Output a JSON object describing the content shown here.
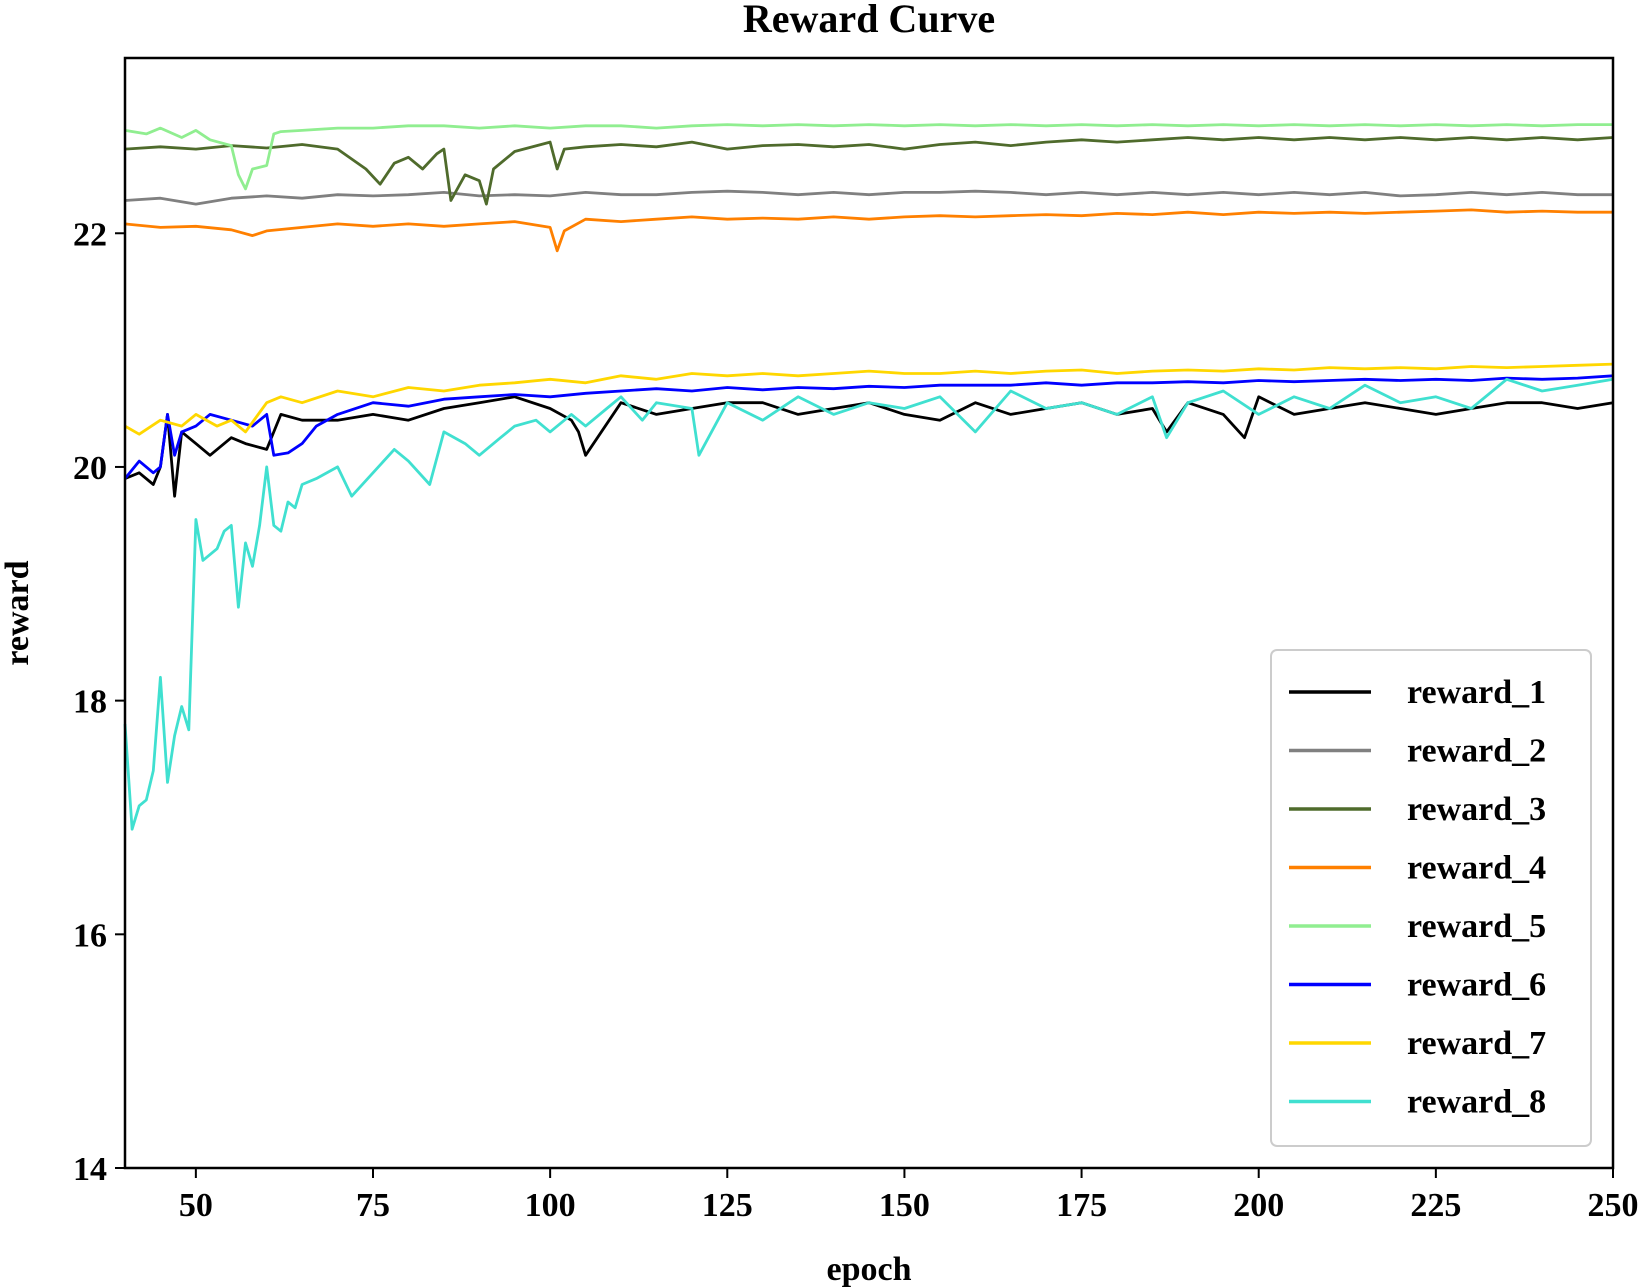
{
  "chart_data": {
    "type": "line",
    "title": "Reward Curve",
    "xlabel": "epoch",
    "ylabel": "reward",
    "xlim": [
      40,
      250
    ],
    "ylim": [
      14,
      23.5
    ],
    "xticks": [
      50,
      75,
      100,
      125,
      150,
      175,
      200,
      225,
      250
    ],
    "yticks": [
      14,
      16,
      18,
      20,
      22
    ],
    "legend_position": "bottom-right",
    "grid": false,
    "series": [
      {
        "name": "reward_1",
        "color": "#000000",
        "x": [
          40,
          42,
          44,
          45,
          46,
          47,
          48,
          50,
          52,
          55,
          57,
          60,
          62,
          65,
          70,
          75,
          80,
          85,
          90,
          95,
          100,
          103,
          104,
          105,
          110,
          115,
          120,
          125,
          130,
          135,
          140,
          145,
          150,
          155,
          160,
          165,
          170,
          175,
          180,
          185,
          187,
          190,
          195,
          198,
          200,
          205,
          210,
          215,
          220,
          225,
          230,
          235,
          240,
          245,
          250
        ],
        "values": [
          19.9,
          19.95,
          19.85,
          20.0,
          20.45,
          19.75,
          20.3,
          20.2,
          20.1,
          20.25,
          20.2,
          20.15,
          20.45,
          20.4,
          20.4,
          20.45,
          20.4,
          20.5,
          20.55,
          20.6,
          20.5,
          20.4,
          20.3,
          20.1,
          20.55,
          20.45,
          20.5,
          20.55,
          20.55,
          20.45,
          20.5,
          20.55,
          20.45,
          20.4,
          20.55,
          20.45,
          20.5,
          20.55,
          20.45,
          20.5,
          20.3,
          20.55,
          20.45,
          20.25,
          20.6,
          20.45,
          20.5,
          20.55,
          20.5,
          20.45,
          20.5,
          20.55,
          20.55,
          20.5,
          20.55
        ]
      },
      {
        "name": "reward_2",
        "color": "#808080",
        "x": [
          40,
          45,
          50,
          55,
          60,
          65,
          70,
          75,
          80,
          85,
          90,
          95,
          100,
          105,
          110,
          115,
          120,
          125,
          130,
          135,
          140,
          145,
          150,
          155,
          160,
          165,
          170,
          175,
          180,
          185,
          190,
          195,
          200,
          205,
          210,
          215,
          220,
          225,
          230,
          235,
          240,
          245,
          250
        ],
        "values": [
          22.28,
          22.3,
          22.25,
          22.3,
          22.32,
          22.3,
          22.33,
          22.32,
          22.33,
          22.35,
          22.32,
          22.33,
          22.32,
          22.35,
          22.33,
          22.33,
          22.35,
          22.36,
          22.35,
          22.33,
          22.35,
          22.33,
          22.35,
          22.35,
          22.36,
          22.35,
          22.33,
          22.35,
          22.33,
          22.35,
          22.33,
          22.35,
          22.33,
          22.35,
          22.33,
          22.35,
          22.32,
          22.33,
          22.35,
          22.33,
          22.35,
          22.33,
          22.33
        ]
      },
      {
        "name": "reward_3",
        "color": "#4f6b2c",
        "x": [
          40,
          45,
          50,
          55,
          60,
          65,
          70,
          74,
          76,
          78,
          80,
          82,
          84,
          85,
          86,
          88,
          90,
          91,
          92,
          95,
          100,
          101,
          102,
          105,
          110,
          115,
          120,
          125,
          130,
          135,
          140,
          145,
          150,
          155,
          160,
          165,
          170,
          175,
          180,
          185,
          190,
          195,
          200,
          205,
          210,
          215,
          220,
          225,
          230,
          235,
          240,
          245,
          250
        ],
        "values": [
          22.72,
          22.74,
          22.72,
          22.75,
          22.73,
          22.76,
          22.72,
          22.55,
          22.42,
          22.6,
          22.65,
          22.55,
          22.68,
          22.72,
          22.28,
          22.5,
          22.45,
          22.25,
          22.55,
          22.7,
          22.78,
          22.55,
          22.72,
          22.74,
          22.76,
          22.74,
          22.78,
          22.72,
          22.75,
          22.76,
          22.74,
          22.76,
          22.72,
          22.76,
          22.78,
          22.75,
          22.78,
          22.8,
          22.78,
          22.8,
          22.82,
          22.8,
          22.82,
          22.8,
          22.82,
          22.8,
          22.82,
          22.8,
          22.82,
          22.8,
          22.82,
          22.8,
          22.82
        ]
      },
      {
        "name": "reward_4",
        "color": "#ff8000",
        "x": [
          40,
          45,
          50,
          55,
          58,
          60,
          65,
          70,
          75,
          80,
          85,
          90,
          95,
          100,
          101,
          102,
          105,
          110,
          115,
          120,
          125,
          130,
          135,
          140,
          145,
          150,
          155,
          160,
          165,
          170,
          175,
          180,
          185,
          190,
          195,
          200,
          205,
          210,
          215,
          220,
          225,
          230,
          235,
          240,
          245,
          250
        ],
        "values": [
          22.08,
          22.05,
          22.06,
          22.03,
          21.98,
          22.02,
          22.05,
          22.08,
          22.06,
          22.08,
          22.06,
          22.08,
          22.1,
          22.05,
          21.85,
          22.02,
          22.12,
          22.1,
          22.12,
          22.14,
          22.12,
          22.13,
          22.12,
          22.14,
          22.12,
          22.14,
          22.15,
          22.14,
          22.15,
          22.16,
          22.15,
          22.17,
          22.16,
          22.18,
          22.16,
          22.18,
          22.17,
          22.18,
          22.17,
          22.18,
          22.19,
          22.2,
          22.18,
          22.19,
          22.18,
          22.18
        ]
      },
      {
        "name": "reward_5",
        "color": "#90ee90",
        "x": [
          40,
          43,
          45,
          48,
          50,
          52,
          55,
          56,
          57,
          58,
          60,
          61,
          62,
          65,
          70,
          75,
          80,
          85,
          90,
          95,
          100,
          105,
          110,
          115,
          120,
          125,
          130,
          135,
          140,
          145,
          150,
          155,
          160,
          165,
          170,
          175,
          180,
          185,
          190,
          195,
          200,
          205,
          210,
          215,
          220,
          225,
          230,
          235,
          240,
          245,
          250
        ],
        "values": [
          22.88,
          22.85,
          22.9,
          22.82,
          22.88,
          22.8,
          22.75,
          22.5,
          22.38,
          22.55,
          22.58,
          22.85,
          22.87,
          22.88,
          22.9,
          22.9,
          22.92,
          22.92,
          22.9,
          22.92,
          22.9,
          22.92,
          22.92,
          22.9,
          22.92,
          22.93,
          22.92,
          22.93,
          22.92,
          22.93,
          22.92,
          22.93,
          22.92,
          22.93,
          22.92,
          22.93,
          22.92,
          22.93,
          22.92,
          22.93,
          22.92,
          22.93,
          22.92,
          22.93,
          22.92,
          22.93,
          22.92,
          22.93,
          22.92,
          22.93,
          22.93
        ]
      },
      {
        "name": "reward_6",
        "color": "#0000ff",
        "x": [
          40,
          42,
          44,
          45,
          46,
          47,
          48,
          50,
          52,
          55,
          58,
          60,
          61,
          63,
          65,
          67,
          70,
          75,
          80,
          85,
          90,
          95,
          100,
          105,
          110,
          115,
          120,
          125,
          130,
          135,
          140,
          145,
          150,
          155,
          160,
          165,
          170,
          175,
          180,
          185,
          190,
          195,
          200,
          205,
          210,
          215,
          220,
          225,
          230,
          235,
          240,
          245,
          250
        ],
        "values": [
          19.9,
          20.05,
          19.95,
          20.0,
          20.45,
          20.1,
          20.3,
          20.35,
          20.45,
          20.4,
          20.35,
          20.45,
          20.1,
          20.12,
          20.2,
          20.35,
          20.45,
          20.55,
          20.52,
          20.58,
          20.6,
          20.62,
          20.6,
          20.63,
          20.65,
          20.67,
          20.65,
          20.68,
          20.66,
          20.68,
          20.67,
          20.69,
          20.68,
          20.7,
          20.7,
          20.7,
          20.72,
          20.7,
          20.72,
          20.72,
          20.73,
          20.72,
          20.74,
          20.73,
          20.74,
          20.75,
          20.74,
          20.75,
          20.74,
          20.76,
          20.75,
          20.76,
          20.78
        ]
      },
      {
        "name": "reward_7",
        "color": "#ffd700",
        "x": [
          40,
          42,
          45,
          48,
          50,
          53,
          55,
          57,
          60,
          62,
          65,
          70,
          75,
          80,
          85,
          90,
          95,
          100,
          105,
          110,
          115,
          120,
          125,
          130,
          135,
          140,
          145,
          150,
          155,
          160,
          165,
          170,
          175,
          180,
          185,
          190,
          195,
          200,
          205,
          210,
          215,
          220,
          225,
          230,
          235,
          240,
          245,
          250
        ],
        "values": [
          20.35,
          20.28,
          20.4,
          20.35,
          20.45,
          20.35,
          20.4,
          20.3,
          20.55,
          20.6,
          20.55,
          20.65,
          20.6,
          20.68,
          20.65,
          20.7,
          20.72,
          20.75,
          20.72,
          20.78,
          20.75,
          20.8,
          20.78,
          20.8,
          20.78,
          20.8,
          20.82,
          20.8,
          20.8,
          20.82,
          20.8,
          20.82,
          20.83,
          20.8,
          20.82,
          20.83,
          20.82,
          20.84,
          20.83,
          20.85,
          20.84,
          20.85,
          20.84,
          20.86,
          20.85,
          20.86,
          20.87,
          20.88
        ]
      },
      {
        "name": "reward_8",
        "color": "#40e0d0",
        "x": [
          40,
          41,
          42,
          43,
          44,
          45,
          46,
          47,
          48,
          49,
          50,
          51,
          52,
          53,
          54,
          55,
          56,
          57,
          58,
          59,
          60,
          61,
          62,
          63,
          64,
          65,
          67,
          70,
          72,
          75,
          78,
          80,
          83,
          85,
          88,
          90,
          93,
          95,
          98,
          100,
          103,
          105,
          108,
          110,
          113,
          115,
          120,
          121,
          125,
          130,
          135,
          140,
          145,
          150,
          155,
          160,
          165,
          170,
          175,
          180,
          185,
          187,
          190,
          195,
          200,
          205,
          210,
          215,
          220,
          225,
          230,
          235,
          240,
          245,
          250
        ],
        "values": [
          17.8,
          16.9,
          17.1,
          17.15,
          17.4,
          18.2,
          17.3,
          17.7,
          17.95,
          17.75,
          19.55,
          19.2,
          19.25,
          19.3,
          19.45,
          19.5,
          18.8,
          19.35,
          19.15,
          19.5,
          20.0,
          19.5,
          19.45,
          19.7,
          19.65,
          19.85,
          19.9,
          20.0,
          19.75,
          19.95,
          20.15,
          20.05,
          19.85,
          20.3,
          20.2,
          20.1,
          20.25,
          20.35,
          20.4,
          20.3,
          20.45,
          20.35,
          20.5,
          20.6,
          20.4,
          20.55,
          20.5,
          20.1,
          20.55,
          20.4,
          20.6,
          20.45,
          20.55,
          20.5,
          20.6,
          20.3,
          20.65,
          20.5,
          20.55,
          20.45,
          20.6,
          20.25,
          20.55,
          20.65,
          20.45,
          20.6,
          20.5,
          20.7,
          20.55,
          20.6,
          20.5,
          20.75,
          20.65,
          20.7,
          20.75
        ]
      }
    ]
  }
}
